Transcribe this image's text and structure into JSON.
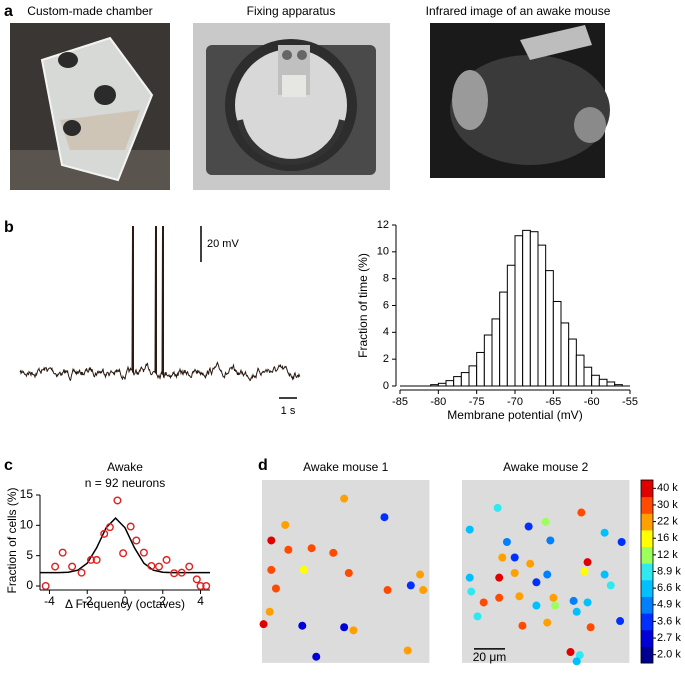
{
  "panel_labels": [
    "a",
    "b",
    "c",
    "d"
  ],
  "panel_a": {
    "titles": [
      "Custom-made chamber",
      "Fixing apparatus",
      "Infrared image of an awake mouse"
    ]
  },
  "trace": {
    "scale_y": "20 mV",
    "scale_x": "1 s"
  },
  "colorbar": {
    "ticks": [
      {
        "value": 2.0,
        "label": "2.0 k"
      },
      {
        "value": 2.7,
        "label": "2.7 k"
      },
      {
        "value": 3.6,
        "label": "3.6 k"
      },
      {
        "value": 4.9,
        "label": "4.9 k"
      },
      {
        "value": 6.6,
        "label": "6.6 k"
      },
      {
        "value": 8.9,
        "label": "8.9 k"
      },
      {
        "value": 12,
        "label": "12 k"
      },
      {
        "value": 16,
        "label": "16 k"
      },
      {
        "value": 22,
        "label": "22 k"
      },
      {
        "value": 30,
        "label": "30 k"
      },
      {
        "value": 40,
        "label": "40 k"
      }
    ],
    "colors": [
      "#000090",
      "#0000d8",
      "#0030ff",
      "#0080ff",
      "#00c0ff",
      "#30e8f0",
      "#9cff5c",
      "#ffff00",
      "#ffa000",
      "#ff4a00",
      "#e00000"
    ]
  },
  "chart_data": [
    {
      "type": "histogram",
      "xlabel": "Membrane potential (mV)",
      "ylabel": "Fraction of time (%)",
      "bins": [
        -85,
        -84,
        -83,
        -82,
        -81,
        -80,
        -79,
        -78,
        -77,
        -76,
        -75,
        -74,
        -73,
        -72,
        -71,
        -70,
        -69,
        -68,
        -67,
        -66,
        -65,
        -64,
        -63,
        -62,
        -61,
        -60,
        -59,
        -58,
        -57,
        -56,
        -55
      ],
      "values": [
        0,
        0,
        0,
        0,
        0.1,
        0.2,
        0.4,
        0.7,
        1.0,
        1.5,
        2.5,
        3.8,
        5.0,
        7.0,
        9.0,
        11.2,
        11.6,
        11.5,
        10.5,
        8.6,
        6.3,
        4.7,
        3.5,
        2.3,
        1.4,
        0.8,
        0.5,
        0.3,
        0.1,
        0
      ],
      "xlim": [
        -85,
        -55
      ],
      "xticks": [
        -85,
        -80,
        -75,
        -70,
        -65,
        -60,
        -55
      ],
      "ylim": [
        0,
        12
      ],
      "yticks": [
        0,
        2,
        4,
        6,
        8,
        10,
        12
      ]
    },
    {
      "type": "scatter",
      "title": "Awake",
      "subtitle": "n = 92 neurons",
      "xlabel": "Δ Frequency (octaves)",
      "ylabel": "Fraction of cells (%)",
      "color": "#e02020",
      "x": [
        -4.2,
        -3.7,
        -3.3,
        -2.8,
        -2.3,
        -1.8,
        -1.5,
        -1.1,
        -0.8,
        -0.4,
        -0.1,
        0.3,
        0.6,
        1.0,
        1.4,
        1.8,
        2.2,
        2.6,
        3.0,
        3.4,
        3.8,
        4.0,
        4.3
      ],
      "values": [
        0,
        3.2,
        5.5,
        3.2,
        2.2,
        4.3,
        4.3,
        8.6,
        9.7,
        14.1,
        5.4,
        9.8,
        7.5,
        5.5,
        3.3,
        3.2,
        4.3,
        2.1,
        2.2,
        3.2,
        1.1,
        0,
        0
      ],
      "fit": {
        "color": "#000000",
        "x": [
          -4.5,
          -4,
          -3.5,
          -3,
          -2.5,
          -2,
          -1.5,
          -1,
          -0.5,
          0,
          0.5,
          1,
          1.5,
          2,
          2.5,
          3,
          3.5,
          4,
          4.5
        ],
        "values": [
          2.2,
          2.2,
          2.2,
          2.27,
          2.6,
          3.75,
          6.3,
          9.6,
          11.2,
          9.6,
          6.3,
          3.75,
          2.6,
          2.27,
          2.2,
          2.2,
          2.2,
          2.2,
          2.2
        ]
      },
      "xlim": [
        -4.5,
        4.5
      ],
      "xticks": [
        -4,
        -2,
        0,
        2,
        4
      ],
      "ylim": [
        0,
        15
      ],
      "yticks": [
        0,
        5,
        10,
        15
      ]
    },
    {
      "type": "map",
      "title": "Awake mouse 1",
      "xlim": [
        0,
        108
      ],
      "ylim": [
        0,
        118
      ],
      "x": [
        53,
        79,
        15,
        6,
        17,
        32,
        46,
        102,
        6,
        27,
        56,
        104,
        9,
        96,
        81,
        5,
        1,
        26,
        53,
        59,
        94,
        35
      ],
      "y": [
        12,
        24,
        29,
        39,
        45,
        44,
        47,
        61,
        58,
        58,
        60,
        71,
        70,
        68,
        71,
        85,
        93,
        94,
        95,
        97,
        110,
        114
      ],
      "values": [
        22,
        3.6,
        22,
        40,
        30,
        30,
        30,
        22,
        30,
        16,
        30,
        22,
        30,
        3.6,
        30,
        22,
        40,
        2.7,
        2.7,
        22,
        22,
        2.7
      ]
    },
    {
      "type": "map",
      "title": "Awake mouse 2",
      "xlim": [
        0,
        108
      ],
      "ylim": [
        0,
        118
      ],
      "scale_bar": {
        "value": 20,
        "label": "20 μm"
      },
      "x": [
        23,
        77,
        54,
        43,
        5,
        92,
        29,
        57,
        103,
        34,
        26,
        81,
        44,
        24,
        34,
        79,
        5,
        55,
        92,
        96,
        48,
        6,
        14,
        24,
        37,
        59,
        72,
        48,
        60,
        81,
        10,
        74,
        39,
        55,
        83,
        102,
        70,
        76,
        74
      ],
      "y": [
        18,
        21,
        27,
        30,
        32,
        34,
        40,
        39,
        40,
        50,
        50,
        53,
        54,
        63,
        60,
        59,
        63,
        61,
        61,
        68,
        66,
        72,
        79,
        76,
        75,
        76,
        78,
        81,
        81,
        79,
        88,
        85,
        94,
        92,
        95,
        91,
        111,
        113,
        117
      ],
      "values": [
        8.9,
        30,
        12,
        3.6,
        6.6,
        6.6,
        4.9,
        4.9,
        3.6,
        3.6,
        22,
        40,
        22,
        40,
        22,
        16,
        6.6,
        4.9,
        6.6,
        8.9,
        3.6,
        8.9,
        30,
        30,
        22,
        22,
        4.9,
        6.6,
        12,
        6.6,
        8.9,
        6.6,
        30,
        22,
        30,
        3.6,
        40,
        8.9,
        6.6
      ]
    }
  ]
}
